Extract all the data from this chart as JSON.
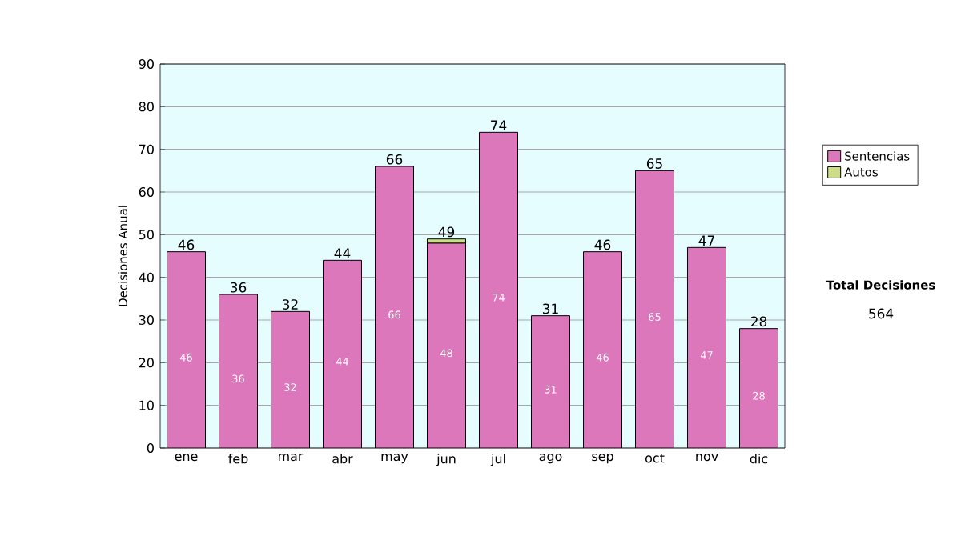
{
  "chart_data": {
    "type": "bar",
    "stacked": true,
    "ylabel": "Decisiones Anual",
    "categories": [
      "ene",
      "feb",
      "mar",
      "abr",
      "may",
      "jun",
      "jul",
      "ago",
      "sep",
      "oct",
      "nov",
      "dic"
    ],
    "series": [
      {
        "name": "Sentencias",
        "color": "#dd77bb",
        "values": [
          46,
          36,
          32,
          44,
          66,
          48,
          74,
          31,
          46,
          65,
          47,
          28
        ],
        "value_labels": [
          "46",
          "36",
          "32",
          "44",
          "66",
          "48",
          "74",
          "31",
          "46",
          "65",
          "47",
          "28"
        ]
      },
      {
        "name": "Autos",
        "color": "#ccdd88",
        "values": [
          0,
          0,
          0,
          0,
          0,
          1,
          0,
          0,
          0,
          0,
          0,
          0
        ]
      }
    ],
    "totals": [
      "46",
      "36",
      "32",
      "44",
      "66",
      "49",
      "74",
      "31",
      "46",
      "65",
      "47",
      "28"
    ],
    "ylim": [
      0,
      90
    ],
    "yticks": [
      0,
      10,
      20,
      30,
      40,
      50,
      60,
      70,
      80,
      90
    ],
    "grid": "y",
    "legend": "right",
    "annotations": [
      "Total Decisiones",
      "564"
    ]
  }
}
